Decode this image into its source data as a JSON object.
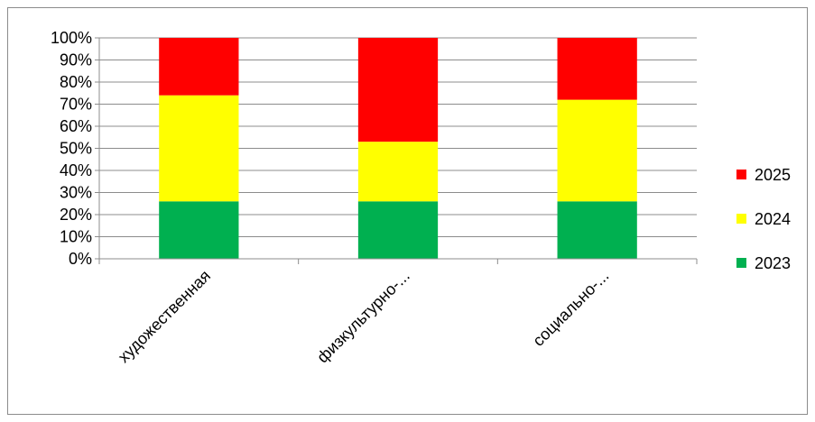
{
  "chart_data": {
    "type": "bar",
    "stacked": true,
    "percent_stacked": true,
    "categories": [
      "художественная",
      "физкультурно-...",
      "социально-..."
    ],
    "series": [
      {
        "name": "2023",
        "color": "#00b050",
        "values": [
          26,
          26,
          26
        ]
      },
      {
        "name": "2024",
        "color": "#ffff00",
        "values": [
          48,
          27,
          46
        ]
      },
      {
        "name": "2025",
        "color": "#ff0000",
        "values": [
          26,
          47,
          28
        ]
      }
    ],
    "yticks": [
      "0%",
      "10%",
      "20%",
      "30%",
      "40%",
      "50%",
      "60%",
      "70%",
      "80%",
      "90%",
      "100%"
    ],
    "ylim": [
      0,
      100
    ],
    "grid": true,
    "legend_position": "right"
  }
}
